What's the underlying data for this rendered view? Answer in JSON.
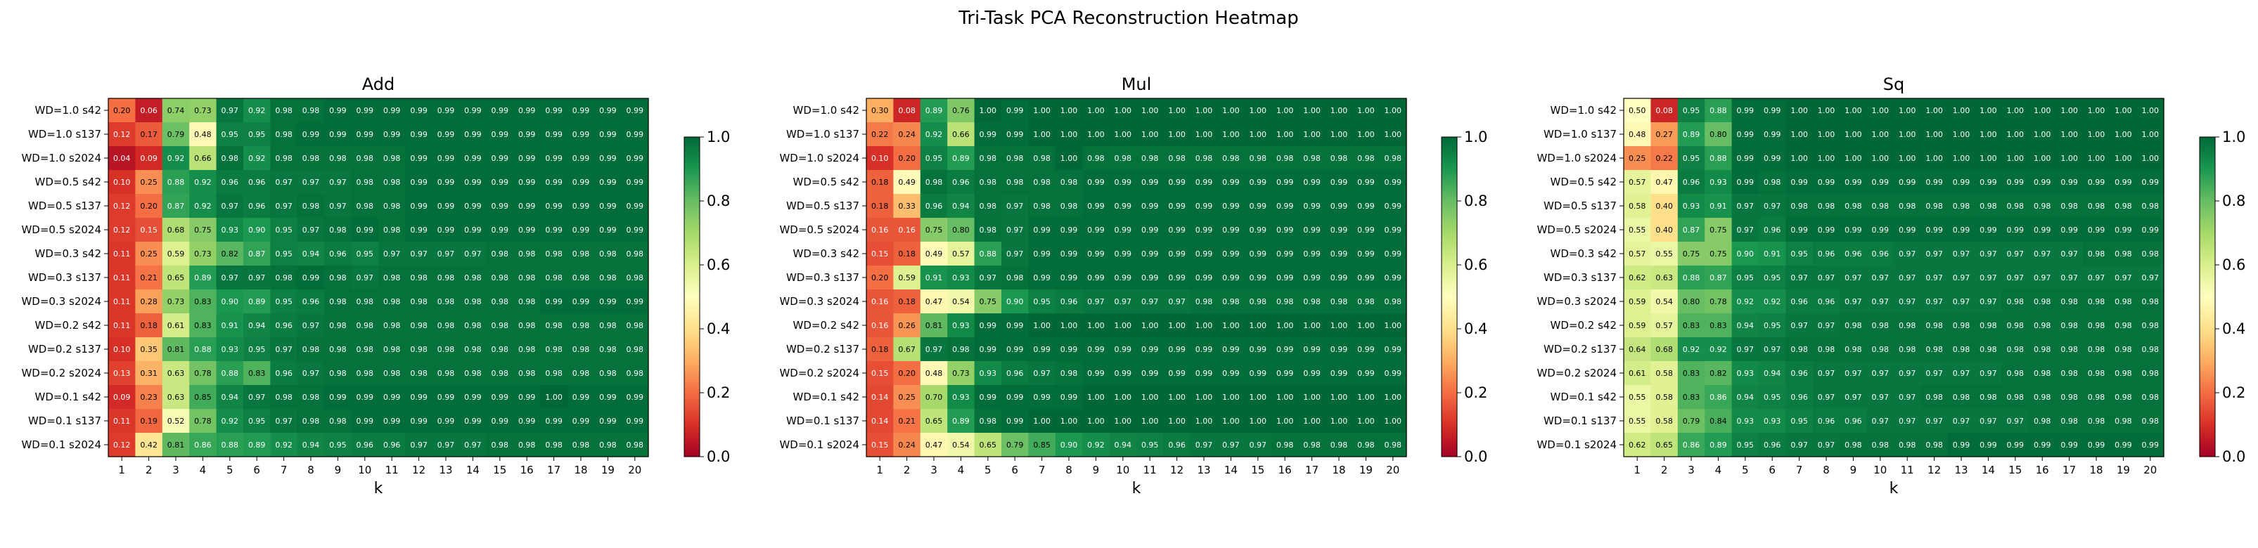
{
  "figure": {
    "suptitle": "Tri-Task PCA Reconstruction Heatmap"
  },
  "chart_data": [
    {
      "type": "heatmap",
      "title": "Add",
      "xlabel": "k",
      "ylabel": "",
      "x": [
        1,
        2,
        3,
        4,
        5,
        6,
        7,
        8,
        9,
        10,
        11,
        12,
        13,
        14,
        15,
        16,
        17,
        18,
        19,
        20
      ],
      "rows": [
        "WD=1.0 s42",
        "WD=1.0 s137",
        "WD=1.0 s2024",
        "WD=0.5 s42",
        "WD=0.5 s137",
        "WD=0.5 s2024",
        "WD=0.3 s42",
        "WD=0.3 s137",
        "WD=0.3 s2024",
        "WD=0.2 s42",
        "WD=0.2 s137",
        "WD=0.2 s2024",
        "WD=0.1 s42",
        "WD=0.1 s137",
        "WD=0.1 s2024"
      ],
      "values": [
        [
          0.2,
          0.06,
          0.74,
          0.73,
          0.97,
          0.92,
          0.98,
          0.98,
          0.99,
          0.99,
          0.99,
          0.99,
          0.99,
          0.99,
          0.99,
          0.99,
          0.99,
          0.99,
          0.99,
          0.99
        ],
        [
          0.12,
          0.17,
          0.79,
          0.48,
          0.95,
          0.95,
          0.98,
          0.99,
          0.99,
          0.99,
          0.99,
          0.99,
          0.99,
          0.99,
          0.99,
          0.99,
          0.99,
          0.99,
          0.99,
          0.99
        ],
        [
          0.04,
          0.09,
          0.92,
          0.66,
          0.98,
          0.92,
          0.98,
          0.98,
          0.98,
          0.98,
          0.98,
          0.99,
          0.99,
          0.99,
          0.99,
          0.99,
          0.99,
          0.99,
          0.99,
          0.99
        ],
        [
          0.1,
          0.25,
          0.88,
          0.92,
          0.96,
          0.96,
          0.97,
          0.97,
          0.97,
          0.98,
          0.98,
          0.99,
          0.99,
          0.99,
          0.99,
          0.99,
          0.99,
          0.99,
          0.99,
          0.99
        ],
        [
          0.12,
          0.2,
          0.87,
          0.92,
          0.97,
          0.96,
          0.97,
          0.98,
          0.97,
          0.98,
          0.98,
          0.99,
          0.99,
          0.99,
          0.99,
          0.99,
          0.99,
          0.99,
          0.99,
          0.99
        ],
        [
          0.12,
          0.15,
          0.68,
          0.75,
          0.93,
          0.9,
          0.95,
          0.97,
          0.98,
          0.99,
          0.98,
          0.99,
          0.99,
          0.99,
          0.99,
          0.99,
          0.99,
          0.99,
          0.99,
          0.99
        ],
        [
          0.11,
          0.25,
          0.59,
          0.73,
          0.82,
          0.87,
          0.95,
          0.94,
          0.96,
          0.95,
          0.97,
          0.97,
          0.97,
          0.97,
          0.98,
          0.98,
          0.98,
          0.98,
          0.98,
          0.98
        ],
        [
          0.11,
          0.21,
          0.65,
          0.89,
          0.97,
          0.97,
          0.98,
          0.99,
          0.98,
          0.97,
          0.98,
          0.98,
          0.98,
          0.98,
          0.98,
          0.98,
          0.98,
          0.98,
          0.98,
          0.98
        ],
        [
          0.11,
          0.28,
          0.73,
          0.83,
          0.9,
          0.89,
          0.95,
          0.96,
          0.98,
          0.98,
          0.98,
          0.98,
          0.98,
          0.98,
          0.98,
          0.98,
          0.99,
          0.99,
          0.99,
          0.99
        ],
        [
          0.11,
          0.18,
          0.61,
          0.83,
          0.91,
          0.94,
          0.96,
          0.97,
          0.98,
          0.98,
          0.98,
          0.98,
          0.98,
          0.98,
          0.98,
          0.98,
          0.98,
          0.98,
          0.98,
          0.98
        ],
        [
          0.1,
          0.35,
          0.81,
          0.88,
          0.93,
          0.95,
          0.97,
          0.98,
          0.98,
          0.98,
          0.98,
          0.98,
          0.98,
          0.98,
          0.98,
          0.98,
          0.98,
          0.98,
          0.98,
          0.98
        ],
        [
          0.13,
          0.31,
          0.63,
          0.78,
          0.88,
          0.83,
          0.96,
          0.97,
          0.98,
          0.98,
          0.98,
          0.98,
          0.98,
          0.98,
          0.98,
          0.98,
          0.98,
          0.98,
          0.98,
          0.98
        ],
        [
          0.09,
          0.23,
          0.63,
          0.85,
          0.94,
          0.97,
          0.98,
          0.98,
          0.99,
          0.99,
          0.99,
          0.99,
          0.99,
          0.99,
          0.99,
          0.99,
          1.0,
          0.99,
          0.99,
          0.99
        ],
        [
          0.11,
          0.19,
          0.52,
          0.78,
          0.92,
          0.95,
          0.97,
          0.98,
          0.98,
          0.99,
          0.99,
          0.99,
          0.99,
          0.99,
          0.99,
          0.99,
          0.99,
          0.99,
          0.99,
          0.99
        ],
        [
          0.12,
          0.42,
          0.81,
          0.86,
          0.88,
          0.89,
          0.92,
          0.94,
          0.95,
          0.96,
          0.96,
          0.97,
          0.97,
          0.97,
          0.98,
          0.98,
          0.98,
          0.98,
          0.98,
          0.98
        ]
      ],
      "colorbar": {
        "min": 0.0,
        "max": 1.0,
        "ticks": [
          "0.0",
          "0.2",
          "0.4",
          "0.6",
          "0.8",
          "1.0"
        ],
        "colormap": "RdYlGn"
      }
    },
    {
      "type": "heatmap",
      "title": "Mul",
      "xlabel": "k",
      "ylabel": "",
      "x": [
        1,
        2,
        3,
        4,
        5,
        6,
        7,
        8,
        9,
        10,
        11,
        12,
        13,
        14,
        15,
        16,
        17,
        18,
        19,
        20
      ],
      "rows": [
        "WD=1.0 s42",
        "WD=1.0 s137",
        "WD=1.0 s2024",
        "WD=0.5 s42",
        "WD=0.5 s137",
        "WD=0.5 s2024",
        "WD=0.3 s42",
        "WD=0.3 s137",
        "WD=0.3 s2024",
        "WD=0.2 s42",
        "WD=0.2 s137",
        "WD=0.2 s2024",
        "WD=0.1 s42",
        "WD=0.1 s137",
        "WD=0.1 s2024"
      ],
      "values": [
        [
          0.3,
          0.08,
          0.89,
          0.76,
          1.0,
          0.99,
          1.0,
          1.0,
          1.0,
          1.0,
          1.0,
          1.0,
          1.0,
          1.0,
          1.0,
          1.0,
          1.0,
          1.0,
          1.0,
          1.0
        ],
        [
          0.22,
          0.24,
          0.92,
          0.66,
          0.99,
          0.99,
          1.0,
          1.0,
          1.0,
          1.0,
          1.0,
          1.0,
          1.0,
          1.0,
          1.0,
          1.0,
          1.0,
          1.0,
          1.0,
          1.0
        ],
        [
          0.1,
          0.2,
          0.95,
          0.89,
          0.98,
          0.98,
          0.98,
          1.0,
          0.98,
          0.98,
          0.98,
          0.98,
          0.98,
          0.98,
          0.98,
          0.98,
          0.98,
          0.98,
          0.98,
          0.98
        ],
        [
          0.18,
          0.49,
          0.98,
          0.96,
          0.98,
          0.98,
          0.98,
          0.98,
          0.99,
          0.99,
          0.99,
          0.99,
          0.99,
          0.99,
          0.99,
          0.99,
          0.99,
          0.99,
          0.99,
          0.99
        ],
        [
          0.18,
          0.33,
          0.96,
          0.94,
          0.98,
          0.97,
          0.98,
          0.98,
          0.99,
          0.99,
          0.99,
          0.99,
          0.99,
          0.99,
          0.99,
          0.99,
          0.99,
          0.99,
          0.99,
          0.99
        ],
        [
          0.16,
          0.16,
          0.75,
          0.8,
          0.98,
          0.97,
          0.99,
          0.99,
          0.99,
          0.99,
          0.99,
          0.99,
          0.99,
          0.99,
          0.99,
          0.99,
          0.99,
          0.99,
          0.99,
          0.99
        ],
        [
          0.15,
          0.18,
          0.49,
          0.57,
          0.88,
          0.97,
          0.99,
          0.99,
          0.99,
          0.99,
          0.99,
          0.99,
          0.99,
          0.99,
          0.99,
          0.99,
          0.99,
          0.99,
          0.99,
          0.99
        ],
        [
          0.2,
          0.59,
          0.91,
          0.93,
          0.97,
          0.98,
          0.99,
          0.99,
          0.99,
          0.99,
          0.99,
          0.99,
          0.99,
          0.99,
          0.99,
          0.99,
          0.99,
          0.99,
          0.99,
          0.99
        ],
        [
          0.16,
          0.18,
          0.47,
          0.54,
          0.75,
          0.9,
          0.95,
          0.96,
          0.97,
          0.97,
          0.97,
          0.97,
          0.98,
          0.98,
          0.98,
          0.98,
          0.98,
          0.98,
          0.98,
          0.98
        ],
        [
          0.16,
          0.26,
          0.81,
          0.93,
          0.99,
          0.99,
          1.0,
          1.0,
          1.0,
          1.0,
          1.0,
          1.0,
          1.0,
          1.0,
          1.0,
          1.0,
          1.0,
          1.0,
          1.0,
          1.0
        ],
        [
          0.18,
          0.67,
          0.97,
          0.98,
          0.99,
          0.99,
          0.99,
          0.99,
          0.99,
          0.99,
          0.99,
          0.99,
          0.99,
          0.99,
          0.99,
          0.99,
          0.99,
          0.99,
          0.99,
          0.99
        ],
        [
          0.15,
          0.2,
          0.48,
          0.73,
          0.93,
          0.96,
          0.97,
          0.98,
          0.99,
          0.99,
          0.99,
          0.99,
          0.99,
          0.99,
          0.99,
          0.99,
          0.99,
          0.99,
          0.99,
          0.99
        ],
        [
          0.14,
          0.25,
          0.7,
          0.93,
          0.99,
          0.99,
          0.99,
          0.99,
          1.0,
          1.0,
          1.0,
          1.0,
          1.0,
          1.0,
          1.0,
          1.0,
          1.0,
          1.0,
          1.0,
          1.0
        ],
        [
          0.14,
          0.21,
          0.65,
          0.89,
          0.98,
          0.99,
          1.0,
          1.0,
          1.0,
          1.0,
          1.0,
          1.0,
          1.0,
          1.0,
          1.0,
          1.0,
          1.0,
          1.0,
          1.0,
          1.0
        ],
        [
          0.15,
          0.24,
          0.47,
          0.54,
          0.65,
          0.79,
          0.85,
          0.9,
          0.92,
          0.94,
          0.95,
          0.96,
          0.97,
          0.97,
          0.97,
          0.98,
          0.98,
          0.98,
          0.98,
          0.98
        ]
      ],
      "colorbar": {
        "min": 0.0,
        "max": 1.0,
        "ticks": [
          "0.0",
          "0.2",
          "0.4",
          "0.6",
          "0.8",
          "1.0"
        ],
        "colormap": "RdYlGn"
      }
    },
    {
      "type": "heatmap",
      "title": "Sq",
      "xlabel": "k",
      "ylabel": "",
      "x": [
        1,
        2,
        3,
        4,
        5,
        6,
        7,
        8,
        9,
        10,
        11,
        12,
        13,
        14,
        15,
        16,
        17,
        18,
        19,
        20
      ],
      "rows": [
        "WD=1.0 s42",
        "WD=1.0 s137",
        "WD=1.0 s2024",
        "WD=0.5 s42",
        "WD=0.5 s137",
        "WD=0.5 s2024",
        "WD=0.3 s42",
        "WD=0.3 s137",
        "WD=0.3 s2024",
        "WD=0.2 s42",
        "WD=0.2 s137",
        "WD=0.2 s2024",
        "WD=0.1 s42",
        "WD=0.1 s137",
        "WD=0.1 s2024"
      ],
      "values": [
        [
          0.5,
          0.08,
          0.95,
          0.88,
          0.99,
          0.99,
          1.0,
          1.0,
          1.0,
          1.0,
          1.0,
          1.0,
          1.0,
          1.0,
          1.0,
          1.0,
          1.0,
          1.0,
          1.0,
          1.0
        ],
        [
          0.48,
          0.27,
          0.89,
          0.8,
          0.99,
          0.99,
          1.0,
          1.0,
          1.0,
          1.0,
          1.0,
          1.0,
          1.0,
          1.0,
          1.0,
          1.0,
          1.0,
          1.0,
          1.0,
          1.0
        ],
        [
          0.25,
          0.22,
          0.95,
          0.88,
          0.99,
          0.99,
          1.0,
          1.0,
          1.0,
          1.0,
          1.0,
          1.0,
          1.0,
          1.0,
          1.0,
          1.0,
          1.0,
          1.0,
          1.0,
          1.0
        ],
        [
          0.57,
          0.47,
          0.96,
          0.93,
          0.99,
          0.98,
          0.99,
          0.99,
          0.99,
          0.99,
          0.99,
          0.99,
          0.99,
          0.99,
          0.99,
          0.99,
          0.99,
          0.99,
          0.99,
          0.99
        ],
        [
          0.58,
          0.4,
          0.93,
          0.91,
          0.97,
          0.97,
          0.98,
          0.98,
          0.98,
          0.98,
          0.98,
          0.98,
          0.98,
          0.98,
          0.98,
          0.98,
          0.98,
          0.98,
          0.98,
          0.98
        ],
        [
          0.55,
          0.4,
          0.87,
          0.75,
          0.97,
          0.96,
          0.99,
          0.99,
          0.99,
          0.99,
          0.99,
          0.99,
          0.99,
          0.99,
          0.99,
          0.99,
          0.99,
          0.99,
          0.99,
          0.99
        ],
        [
          0.57,
          0.55,
          0.75,
          0.75,
          0.9,
          0.91,
          0.95,
          0.96,
          0.96,
          0.96,
          0.97,
          0.97,
          0.97,
          0.97,
          0.97,
          0.97,
          0.97,
          0.98,
          0.98,
          0.98
        ],
        [
          0.62,
          0.63,
          0.88,
          0.87,
          0.95,
          0.95,
          0.97,
          0.97,
          0.97,
          0.97,
          0.97,
          0.97,
          0.97,
          0.97,
          0.97,
          0.97,
          0.97,
          0.97,
          0.97,
          0.97
        ],
        [
          0.59,
          0.54,
          0.8,
          0.78,
          0.92,
          0.92,
          0.96,
          0.96,
          0.97,
          0.97,
          0.97,
          0.97,
          0.97,
          0.97,
          0.98,
          0.98,
          0.98,
          0.98,
          0.98,
          0.98
        ],
        [
          0.59,
          0.57,
          0.83,
          0.83,
          0.94,
          0.95,
          0.97,
          0.97,
          0.98,
          0.98,
          0.98,
          0.98,
          0.98,
          0.98,
          0.98,
          0.98,
          0.98,
          0.98,
          0.98,
          0.98
        ],
        [
          0.64,
          0.68,
          0.92,
          0.92,
          0.97,
          0.97,
          0.98,
          0.98,
          0.98,
          0.98,
          0.98,
          0.98,
          0.98,
          0.98,
          0.98,
          0.98,
          0.98,
          0.98,
          0.98,
          0.98
        ],
        [
          0.61,
          0.58,
          0.83,
          0.82,
          0.93,
          0.94,
          0.96,
          0.97,
          0.97,
          0.97,
          0.97,
          0.97,
          0.97,
          0.97,
          0.98,
          0.98,
          0.98,
          0.98,
          0.98,
          0.98
        ],
        [
          0.55,
          0.58,
          0.83,
          0.86,
          0.94,
          0.95,
          0.96,
          0.97,
          0.97,
          0.97,
          0.97,
          0.98,
          0.98,
          0.98,
          0.98,
          0.98,
          0.98,
          0.98,
          0.98,
          0.98
        ],
        [
          0.55,
          0.58,
          0.79,
          0.84,
          0.93,
          0.93,
          0.95,
          0.96,
          0.96,
          0.97,
          0.97,
          0.97,
          0.97,
          0.97,
          0.97,
          0.98,
          0.98,
          0.98,
          0.98,
          0.98
        ],
        [
          0.62,
          0.65,
          0.86,
          0.89,
          0.95,
          0.96,
          0.97,
          0.97,
          0.98,
          0.98,
          0.98,
          0.98,
          0.99,
          0.99,
          0.99,
          0.99,
          0.99,
          0.99,
          0.99,
          0.99
        ]
      ],
      "colorbar": {
        "min": 0.0,
        "max": 1.0,
        "ticks": [
          "0.0",
          "0.2",
          "0.4",
          "0.6",
          "0.8",
          "1.0"
        ],
        "colormap": "RdYlGn"
      }
    }
  ]
}
